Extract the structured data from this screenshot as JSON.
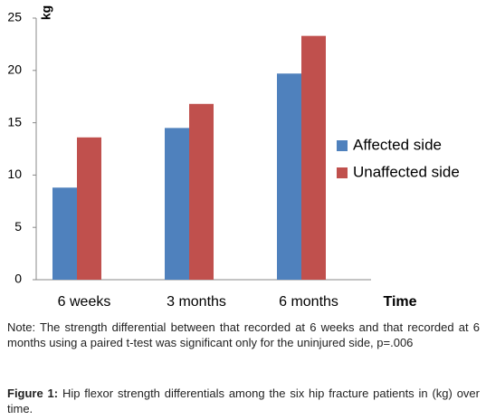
{
  "chart_data": {
    "type": "bar",
    "y_label": "kg",
    "x_label": "Time",
    "categories": [
      "6 weeks",
      "3 months",
      "6 months"
    ],
    "series": [
      {
        "name": "Affected side",
        "color": "#4f81bd",
        "values": [
          8.8,
          14.5,
          19.7
        ]
      },
      {
        "name": "Unaffected side",
        "color": "#c0504d",
        "values": [
          13.6,
          16.8,
          23.3
        ]
      }
    ],
    "ylim": [
      0,
      25
    ],
    "yticks": [
      0,
      5,
      10,
      15,
      20,
      25
    ],
    "grid": false,
    "legend": "right"
  },
  "note": "Note: The strength differential between that recorded at 6 weeks and that recorded at 6 months using a paired t-test was significant only for the uninjured side, p=.006",
  "caption": {
    "label": "Figure 1:",
    "text": "Hip flexor strength differentials among the six hip fracture patients in (kg) over time."
  }
}
